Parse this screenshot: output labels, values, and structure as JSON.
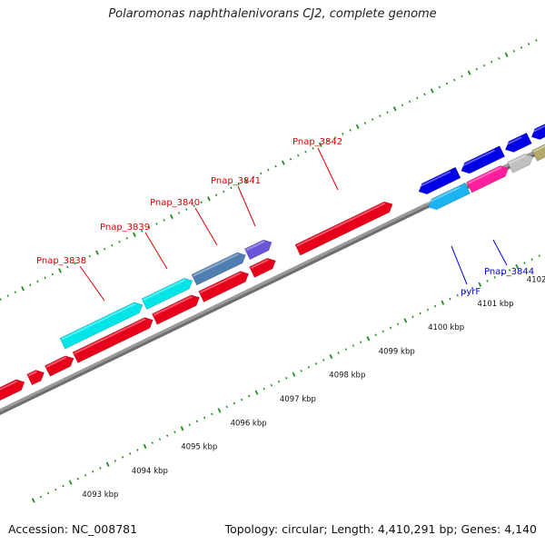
{
  "title": "Polaromonas naphthalenivorans CJ2, complete genome",
  "footer": {
    "accession": "Accession: NC_008781",
    "summary": "Topology: circular; Length: 4,410,291 bp; Genes: 4,140"
  },
  "colors": {
    "forward_strand_gene": "#e8001a",
    "reverse_strand_gene": "#0000e6",
    "cyan_gene": "#00e5e8",
    "light_blue_gene": "#1ab4f0",
    "steel_blue_gene": "#4f7fb0",
    "purple_gene": "#6a55d8",
    "magenta_gene": "#ff1f9e",
    "silver_gene": "#c0c0c0",
    "olive_gene": "#b3a96b",
    "backbone": "#8c8c8c",
    "tick": "#1e8c1e",
    "label_red": "#e00000",
    "label_blue": "#0000e0"
  },
  "scale_labels": [
    "4093 kbp",
    "4094 kbp",
    "4095 kbp",
    "4096 kbp",
    "4097 kbp",
    "4098 kbp",
    "4099 kbp",
    "4100 kbp",
    "4101 kbp",
    "4102 kbp"
  ],
  "gene_labels": [
    {
      "name": "Pnap_3838",
      "strand": "forward"
    },
    {
      "name": "Pnap_3839",
      "strand": "forward"
    },
    {
      "name": "Pnap_3840",
      "strand": "forward"
    },
    {
      "name": "Pnap_3841",
      "strand": "forward"
    },
    {
      "name": "Pnap_3842",
      "strand": "forward"
    },
    {
      "name": "pyrF",
      "strand": "reverse"
    },
    {
      "name": "Pnap_3844",
      "strand": "reverse"
    }
  ]
}
